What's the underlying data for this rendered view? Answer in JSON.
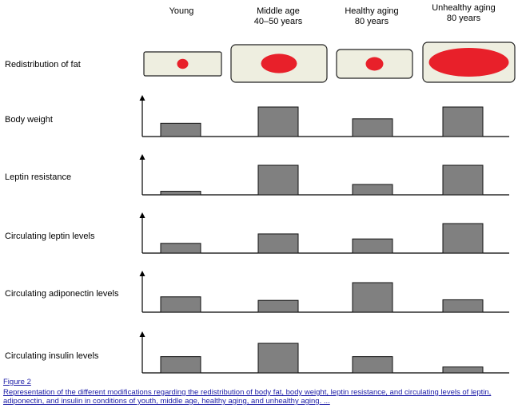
{
  "columns": [
    {
      "label": "Young",
      "sub": ""
    },
    {
      "label": "Middle age",
      "sub": "40–50 years"
    },
    {
      "label": "Healthy aging",
      "sub": "80 years"
    },
    {
      "label": "Unhealthy aging",
      "sub": "80 years"
    }
  ],
  "rows": [
    {
      "key": "fat",
      "label": "Redistribution of fat"
    },
    {
      "key": "body_weight",
      "label": "Body weight"
    },
    {
      "key": "leptin_resistance",
      "label": "Leptin resistance"
    },
    {
      "key": "leptin_levels",
      "label": "Circulating leptin levels"
    },
    {
      "key": "adiponectin_levels",
      "label": "Circulating adiponectin levels"
    },
    {
      "key": "insulin_levels",
      "label": "Circulating insulin levels"
    }
  ],
  "fat_panels": [
    {
      "ellipse_size": 0.12
    },
    {
      "ellipse_size": 0.45
    },
    {
      "ellipse_size": 0.22
    },
    {
      "ellipse_size": 1.0
    }
  ],
  "bar_levels": {
    "body_weight": [
      0.45,
      1.0,
      0.6,
      1.0
    ],
    "leptin_resistance": [
      0.12,
      1.0,
      0.35,
      1.0
    ],
    "leptin_levels": [
      0.33,
      0.65,
      0.48,
      1.0
    ],
    "adiponectin_levels": [
      0.52,
      0.4,
      1.0,
      0.42
    ],
    "insulin_levels": [
      0.55,
      1.0,
      0.55,
      0.2
    ]
  },
  "colors": {
    "fat": "#e8202a",
    "panel_fill": "#eeeee0",
    "bar_fill": "#808080"
  },
  "caption": {
    "figure": "Figure 2",
    "text": "Representation of the different modifications regarding the redistribution of body fat, body weight, leptin resistance, and circulating levels of leptin, adiponectin, and insulin in conditions of youth, middle age, healthy aging, and unhealthy aging. ..."
  }
}
